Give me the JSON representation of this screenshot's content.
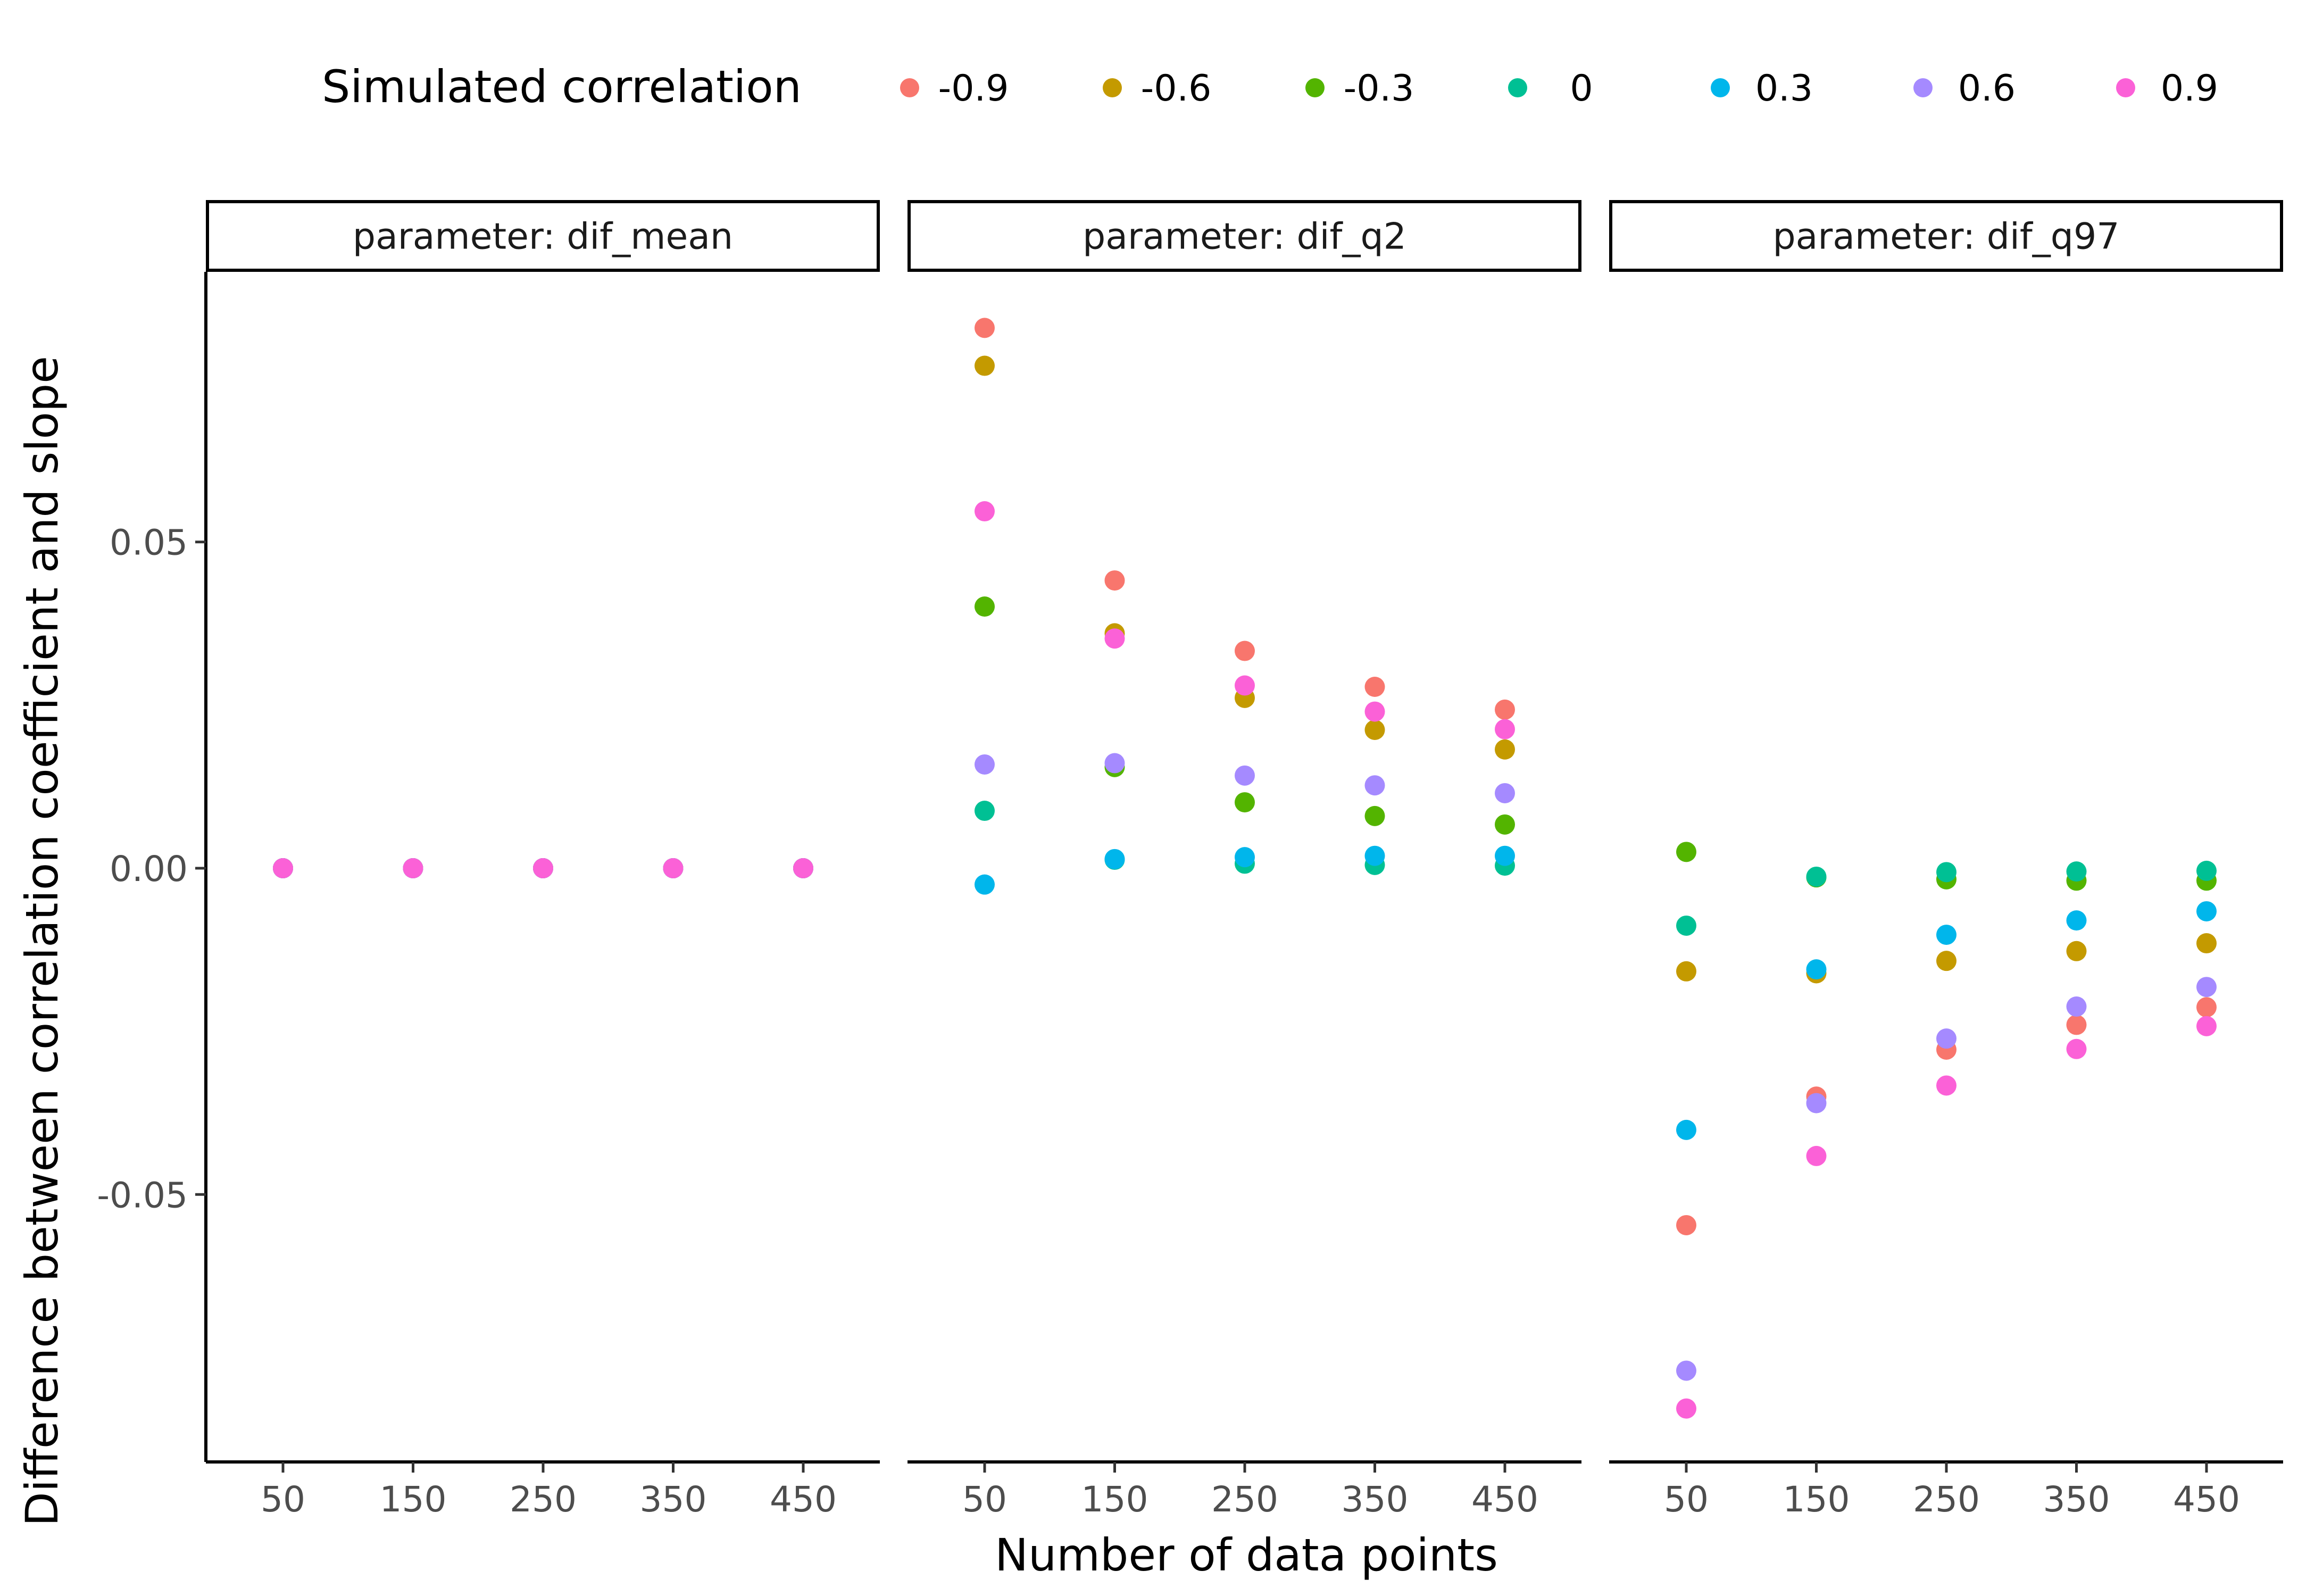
{
  "chart_data": {
    "type": "scatter",
    "facet_panels": [
      "parameter: dif_mean",
      "parameter: dif_q2",
      "parameter: dif_q97"
    ],
    "xlabel": "Number of data points",
    "ylabel": "Difference between correlation coefficient and slope",
    "x_ticks": [
      50,
      150,
      250,
      350,
      450
    ],
    "y_ticks": [
      -0.05,
      0,
      0.05
    ],
    "y_tick_labels": [
      "-0.05",
      "0.00",
      "0.05"
    ],
    "ylim": [
      -0.091,
      0.092
    ],
    "grid": false,
    "legend": {
      "title": "Simulated correlation",
      "position": "top",
      "entries": [
        "-0.9",
        "-0.6",
        "-0.3",
        "0",
        "0.3",
        "0.6",
        "0.9"
      ],
      "colors": [
        "#F8766D",
        "#C49A00",
        "#53B400",
        "#00C094",
        "#00B6EB",
        "#A58AFF",
        "#FB61D7"
      ]
    },
    "x": [
      50,
      150,
      250,
      350,
      450
    ],
    "panels": [
      {
        "strip": "parameter: dif_mean",
        "series": [
          {
            "name": "-0.9",
            "values": [
              0,
              0,
              0,
              0,
              0
            ]
          },
          {
            "name": "-0.6",
            "values": [
              0,
              0,
              0,
              0,
              0
            ]
          },
          {
            "name": "-0.3",
            "values": [
              0,
              0,
              0,
              0,
              0
            ]
          },
          {
            "name": "0",
            "values": [
              0,
              0,
              0,
              0,
              0
            ]
          },
          {
            "name": "0.3",
            "values": [
              0,
              0,
              0,
              0,
              0
            ]
          },
          {
            "name": "0.6",
            "values": [
              0,
              0,
              0,
              0,
              0
            ]
          },
          {
            "name": "0.9",
            "values": [
              0,
              0,
              0,
              0,
              0
            ]
          }
        ]
      },
      {
        "strip": "parameter: dif_q2",
        "series": [
          {
            "name": "-0.9",
            "values": [
              0.0828,
              0.0441,
              0.0333,
              0.0278,
              0.0243
            ]
          },
          {
            "name": "-0.6",
            "values": [
              0.077,
              0.036,
              0.0261,
              0.0212,
              0.0182
            ]
          },
          {
            "name": "-0.3",
            "values": [
              0.0401,
              0.0155,
              0.0101,
              0.008,
              0.0067
            ]
          },
          {
            "name": "0",
            "values": [
              0.0088,
              0.0013,
              0.0007,
              0.0005,
              0.0004
            ]
          },
          {
            "name": "0.3",
            "values": [
              -0.0025,
              0.0014,
              0.0017,
              0.0019,
              0.0019
            ]
          },
          {
            "name": "0.6",
            "values": [
              0.0159,
              0.0161,
              0.0142,
              0.0127,
              0.0115
            ]
          },
          {
            "name": "0.9",
            "values": [
              0.0547,
              0.0352,
              0.028,
              0.024,
              0.0213
            ]
          }
        ]
      },
      {
        "strip": "parameter: dif_q97",
        "series": [
          {
            "name": "-0.9",
            "values": [
              -0.0547,
              -0.035,
              -0.0278,
              -0.024,
              -0.0213
            ]
          },
          {
            "name": "-0.6",
            "values": [
              -0.0158,
              -0.0161,
              -0.0142,
              -0.0127,
              -0.0115
            ]
          },
          {
            "name": "-0.3",
            "values": [
              0.0025,
              -0.0014,
              -0.0017,
              -0.0019,
              -0.0019
            ]
          },
          {
            "name": "0",
            "values": [
              -0.0088,
              -0.0013,
              -0.0006,
              -0.0005,
              -0.0004
            ]
          },
          {
            "name": "0.3",
            "values": [
              -0.0401,
              -0.0155,
              -0.0102,
              -0.008,
              -0.0066
            ]
          },
          {
            "name": "0.6",
            "values": [
              -0.077,
              -0.036,
              -0.0261,
              -0.0212,
              -0.0182
            ]
          },
          {
            "name": "0.9",
            "values": [
              -0.0828,
              -0.0441,
              -0.0333,
              -0.0277,
              -0.0242
            ]
          }
        ]
      }
    ]
  }
}
